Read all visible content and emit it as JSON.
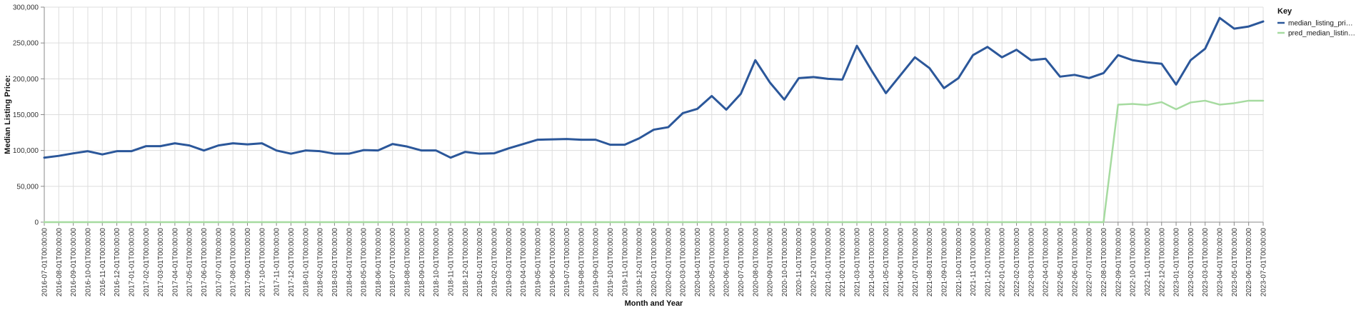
{
  "chart_data": {
    "type": "line",
    "xlabel": "Month and Year",
    "ylabel": "Median Listing Price:",
    "ylim": [
      0,
      300000
    ],
    "yticks": [
      "0",
      "50,000",
      "100,000",
      "150,000",
      "200,000",
      "250,000",
      "300,000"
    ],
    "ytick_values": [
      0,
      50000,
      100000,
      150000,
      200000,
      250000,
      300000
    ],
    "grid": true,
    "legend": {
      "title": "Key",
      "placement": "right",
      "entries": [
        "median_listing_pri…",
        "pred_median_listin…"
      ]
    },
    "x": [
      "2016-07-01T00:00:00",
      "2016-08-01T00:00:00",
      "2016-09-01T00:00:00",
      "2016-10-01T00:00:00",
      "2016-11-01T00:00:00",
      "2016-12-01T00:00:00",
      "2017-01-01T00:00:00",
      "2017-02-01T00:00:00",
      "2017-03-01T00:00:00",
      "2017-04-01T00:00:00",
      "2017-05-01T00:00:00",
      "2017-06-01T00:00:00",
      "2017-07-01T00:00:00",
      "2017-08-01T00:00:00",
      "2017-09-01T00:00:00",
      "2017-10-01T00:00:00",
      "2017-11-01T00:00:00",
      "2017-12-01T00:00:00",
      "2018-01-01T00:00:00",
      "2018-02-01T00:00:00",
      "2018-03-01T00:00:00",
      "2018-04-01T00:00:00",
      "2018-05-01T00:00:00",
      "2018-06-01T00:00:00",
      "2018-07-01T00:00:00",
      "2018-08-01T00:00:00",
      "2018-09-01T00:00:00",
      "2018-10-01T00:00:00",
      "2018-11-01T00:00:00",
      "2018-12-01T00:00:00",
      "2019-01-01T00:00:00",
      "2019-02-01T00:00:00",
      "2019-03-01T00:00:00",
      "2019-04-01T00:00:00",
      "2019-05-01T00:00:00",
      "2019-06-01T00:00:00",
      "2019-07-01T00:00:00",
      "2019-08-01T00:00:00",
      "2019-09-01T00:00:00",
      "2019-10-01T00:00:00",
      "2019-11-01T00:00:00",
      "2019-12-01T00:00:00",
      "2020-01-01T00:00:00",
      "2020-02-01T00:00:00",
      "2020-03-01T00:00:00",
      "2020-04-01T00:00:00",
      "2020-05-01T00:00:00",
      "2020-06-01T00:00:00",
      "2020-07-01T00:00:00",
      "2020-08-01T00:00:00",
      "2020-09-01T00:00:00",
      "2020-10-01T00:00:00",
      "2020-11-01T00:00:00",
      "2020-12-01T00:00:00",
      "2021-01-01T00:00:00",
      "2021-02-01T00:00:00",
      "2021-03-01T00:00:00",
      "2021-04-01T00:00:00",
      "2021-05-01T00:00:00",
      "2021-06-01T00:00:00",
      "2021-07-01T00:00:00",
      "2021-08-01T00:00:00",
      "2021-09-01T00:00:00",
      "2021-10-01T00:00:00",
      "2021-11-01T00:00:00",
      "2021-12-01T00:00:00",
      "2022-01-01T00:00:00",
      "2022-02-01T00:00:00",
      "2022-03-01T00:00:00",
      "2022-04-01T00:00:00",
      "2022-05-01T00:00:00",
      "2022-06-01T00:00:00",
      "2022-07-01T00:00:00",
      "2022-08-01T00:00:00",
      "2022-09-01T00:00:00",
      "2022-10-01T00:00:00",
      "2022-11-01T00:00:00",
      "2022-12-01T00:00:00",
      "2023-01-01T00:00:00",
      "2023-02-01T00:00:00",
      "2023-03-01T00:00:00",
      "2023-04-01T00:00:00",
      "2023-05-01T00:00:00",
      "2023-06-01T00:00:00",
      "2023-07-01T00:00:00"
    ],
    "series": [
      {
        "name": "median_listing_pri…",
        "color": "#2b579a",
        "values": [
          90000,
          92500,
          96000,
          99000,
          94500,
          99000,
          99000,
          106000,
          106000,
          110000,
          107000,
          100000,
          107000,
          110000,
          108500,
          110000,
          100000,
          95500,
          100000,
          99000,
          95500,
          95500,
          100500,
          100000,
          109000,
          105500,
          100000,
          100000,
          90000,
          98000,
          95500,
          96000,
          103000,
          109000,
          115000,
          115500,
          116000,
          115000,
          115000,
          108000,
          108000,
          117000,
          129000,
          132500,
          152000,
          158000,
          176000,
          157000,
          179000,
          226000,
          195000,
          171000,
          201000,
          202500,
          200000,
          199000,
          246000,
          212000,
          180000,
          205000,
          230000,
          215000,
          187000,
          201000,
          233000,
          244500,
          230000,
          240500,
          226000,
          228000,
          203000,
          205500,
          201000,
          208000,
          233000,
          226000,
          223000,
          221000,
          192000,
          226000,
          242000,
          285000,
          270000,
          273000,
          280000
        ]
      },
      {
        "name": "pred_median_listin…",
        "color": "#a6dba0",
        "values": [
          0,
          0,
          0,
          0,
          0,
          0,
          0,
          0,
          0,
          0,
          0,
          0,
          0,
          0,
          0,
          0,
          0,
          0,
          0,
          0,
          0,
          0,
          0,
          0,
          0,
          0,
          0,
          0,
          0,
          0,
          0,
          0,
          0,
          0,
          0,
          0,
          0,
          0,
          0,
          0,
          0,
          0,
          0,
          0,
          0,
          0,
          0,
          0,
          0,
          0,
          0,
          0,
          0,
          0,
          0,
          0,
          0,
          0,
          0,
          0,
          0,
          0,
          0,
          0,
          0,
          0,
          0,
          0,
          0,
          0,
          0,
          0,
          0,
          0,
          164000,
          165000,
          163500,
          167500,
          157500,
          167000,
          169500,
          164000,
          166000,
          169500,
          169500
        ]
      }
    ]
  }
}
